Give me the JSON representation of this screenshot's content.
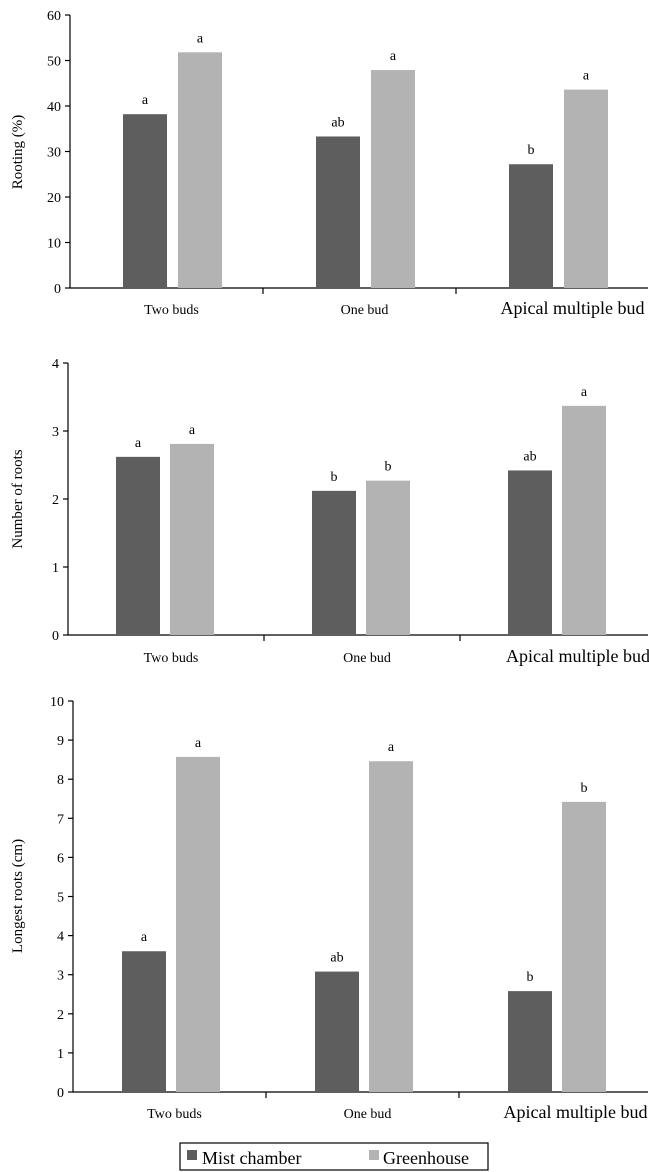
{
  "legend": {
    "items": [
      {
        "name": "Mist chamber",
        "color": "#5e5e5e"
      },
      {
        "name": "Greenhouse",
        "color": "#b3b3b3"
      }
    ]
  },
  "chart_data": [
    {
      "type": "bar",
      "title": "",
      "xlabel": "",
      "ylabel": "Rooting (%)",
      "ylim": [
        0,
        60
      ],
      "yticks": [
        0,
        10,
        20,
        30,
        40,
        50,
        60
      ],
      "categories": [
        "Two buds",
        "One bud",
        "Apical multiple bud"
      ],
      "series": [
        {
          "name": "Mist chamber",
          "color": "#5e5e5e",
          "values": [
            38.2,
            33.3,
            27.2
          ],
          "labels": [
            "a",
            "ab",
            "b"
          ]
        },
        {
          "name": "Greenhouse",
          "color": "#b3b3b3",
          "values": [
            51.8,
            47.9,
            43.6
          ],
          "labels": [
            "a",
            "a",
            "a"
          ]
        }
      ]
    },
    {
      "type": "bar",
      "title": "",
      "xlabel": "",
      "ylabel": "Number of roots",
      "ylim": [
        0,
        4
      ],
      "yticks": [
        0,
        1,
        2,
        3,
        4
      ],
      "categories": [
        "Two buds",
        "One bud",
        "Apical multiple bud"
      ],
      "series": [
        {
          "name": "Mist chamber",
          "color": "#5e5e5e",
          "values": [
            2.62,
            2.12,
            2.42
          ],
          "labels": [
            "a",
            "b",
            "ab"
          ]
        },
        {
          "name": "Greenhouse",
          "color": "#b3b3b3",
          "values": [
            2.81,
            2.27,
            3.37
          ],
          "labels": [
            "a",
            "b",
            "a"
          ]
        }
      ]
    },
    {
      "type": "bar",
      "title": "",
      "xlabel": "",
      "ylabel": "Longest roots (cm)",
      "ylim": [
        0,
        10
      ],
      "yticks": [
        0,
        1,
        2,
        3,
        4,
        5,
        6,
        7,
        8,
        9,
        10
      ],
      "categories": [
        "Two buds",
        "One bud",
        "Apical multiple bud"
      ],
      "series": [
        {
          "name": "Mist chamber",
          "color": "#5e5e5e",
          "values": [
            3.6,
            3.08,
            2.58
          ],
          "labels": [
            "a",
            "ab",
            "b"
          ]
        },
        {
          "name": "Greenhouse",
          "color": "#b3b3b3",
          "values": [
            8.57,
            8.46,
            7.42
          ],
          "labels": [
            "a",
            "a",
            "b"
          ]
        }
      ]
    }
  ]
}
